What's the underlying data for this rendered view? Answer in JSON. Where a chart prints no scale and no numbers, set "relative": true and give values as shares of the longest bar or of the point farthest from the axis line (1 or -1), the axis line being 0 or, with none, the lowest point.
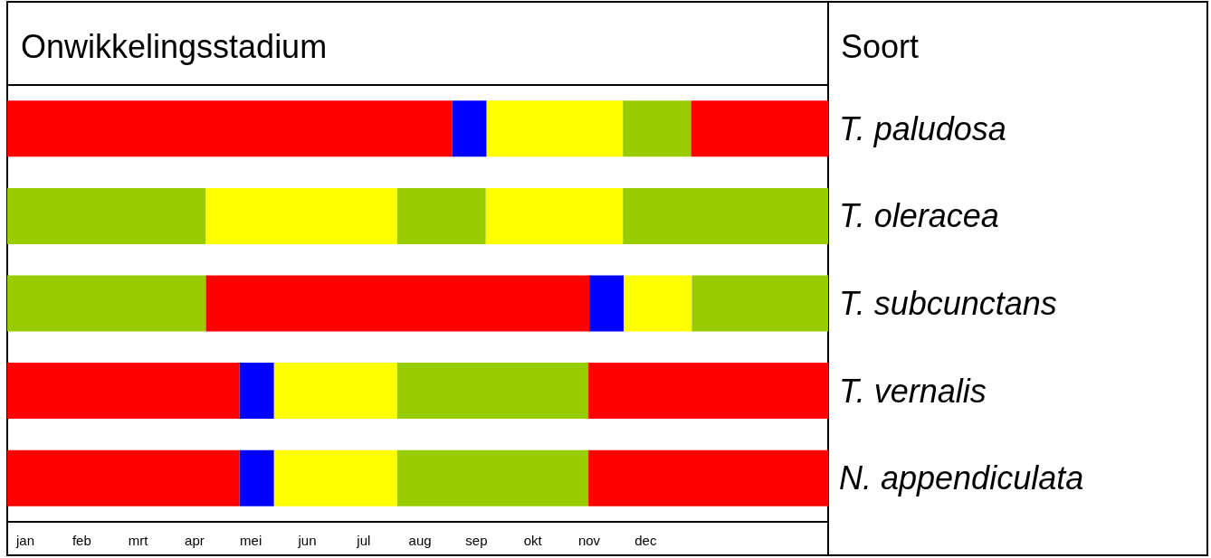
{
  "chart_data": {
    "type": "bar",
    "orientation": "horizontal",
    "stacked": true,
    "relative": true,
    "title": "Onwikkelingsstadium",
    "ylabel": "Soort",
    "categories": [
      "T. paludosa",
      "T. oleracea",
      "T. subcunctans",
      "T. vernalis",
      "N. appendiculata"
    ],
    "annotations": [
      "jan",
      "feb",
      "mrt",
      "apr",
      "mei",
      "jun",
      "jul",
      "aug",
      "sep",
      "okt",
      "nov",
      "dec"
    ],
    "series": [
      {
        "values": [
          0.542,
          0.242,
          0.242,
          0.283,
          0.283
        ],
        "colors": [
          "#ff0000",
          "#99cc00",
          "#99cc00",
          "#ff0000",
          "#ff0000"
        ]
      },
      {
        "values": [
          0.042,
          0.233,
          0.467,
          0.042,
          0.042
        ],
        "colors": [
          "#0000ff",
          "#ffff00",
          "#ff0000",
          "#0000ff",
          "#0000ff"
        ]
      },
      {
        "values": [
          0.166,
          0.108,
          0.042,
          0.15,
          0.15
        ],
        "colors": [
          "#ffff00",
          "#99cc00",
          "#0000ff",
          "#ffff00",
          "#ffff00"
        ]
      },
      {
        "values": [
          0.083,
          0.167,
          0.083,
          0.233,
          0.233
        ],
        "colors": [
          "#99cc00",
          "#ffff00",
          "#ffff00",
          "#99cc00",
          "#99cc00"
        ]
      },
      {
        "values": [
          0.167,
          0.25,
          0.166,
          0.292,
          0.292
        ],
        "colors": [
          "#ff0000",
          "#99cc00",
          "#99cc00",
          "#ff0000",
          "#ff0000"
        ]
      }
    ]
  }
}
